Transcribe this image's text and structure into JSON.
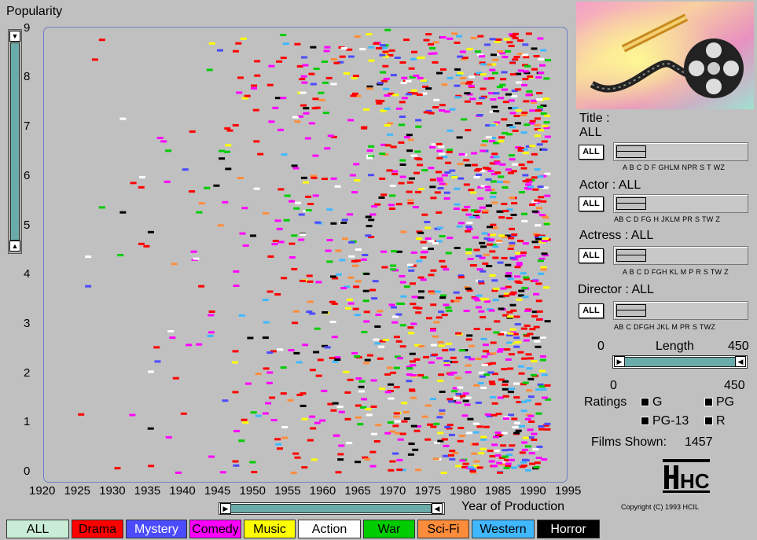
{
  "axes": {
    "y_title": "Popularity",
    "y_ticks": [
      "0",
      "1",
      "2",
      "3",
      "4",
      "5",
      "6",
      "7",
      "8",
      "9"
    ],
    "x_ticks": [
      "1920",
      "1925",
      "1930",
      "1935",
      "1940",
      "1945",
      "1950",
      "1955",
      "1960",
      "1965",
      "1970",
      "1975",
      "1980",
      "1985",
      "1990",
      "1995"
    ],
    "x_title": "Year of Production"
  },
  "legend": [
    {
      "label": "ALL",
      "bg": "#c9ecd6",
      "fg": "#000000"
    },
    {
      "label": "Drama",
      "bg": "#ff0000",
      "fg": "#000000"
    },
    {
      "label": "Mystery",
      "bg": "#4b4bff",
      "fg": "#ffffff"
    },
    {
      "label": "Comedy",
      "bg": "#ff00ff",
      "fg": "#000000"
    },
    {
      "label": "Music",
      "bg": "#ffff00",
      "fg": "#000000"
    },
    {
      "label": "Action",
      "bg": "#ffffff",
      "fg": "#000000"
    },
    {
      "label": "War",
      "bg": "#00cc00",
      "fg": "#000000"
    },
    {
      "label": "Sci-Fi",
      "bg": "#ff8c3a",
      "fg": "#000000"
    },
    {
      "label": "Western",
      "bg": "#40b8ff",
      "fg": "#000000"
    },
    {
      "label": "Horror",
      "bg": "#000000",
      "fg": "#ffffff"
    }
  ],
  "filters": {
    "title_label": "Title :",
    "title_value": "ALL",
    "title_letters": "A B C D F GHLM NPR S  T  WZ",
    "actor_label": "Actor : ALL",
    "actor_letters": "AB  C  D FG H JKLM  PR S  TW Z",
    "actress_label": "Actress : ALL",
    "actress_letters": "A B  C  D FGH KL M  P R S  TW Z",
    "director_label": "Director : ALL",
    "director_letters": "AB  C  DFGH JKL M  PR S  TWZ",
    "all_button": "ALL"
  },
  "length": {
    "min_label": "0",
    "title": "Length",
    "max_label": "450",
    "current_min": "0",
    "current_max": "450"
  },
  "ratings": {
    "label": "Ratings",
    "items": [
      "G",
      "PG",
      "PG-13",
      "R"
    ]
  },
  "films_shown": {
    "label": "Films Shown:",
    "count": "1457"
  },
  "hcil": {
    "logo_text": "HCIL",
    "copyright": "Copyright (C) 1993 HCIL"
  },
  "chart_data": {
    "type": "scatter",
    "xlabel": "Year of Production",
    "ylabel": "Popularity",
    "xlim": [
      1920,
      1995
    ],
    "ylim": [
      0,
      9
    ],
    "note_sample": [
      {
        "x": 1926,
        "y": 1.2,
        "genre": "Drama"
      },
      {
        "x": 1927,
        "y": 3.8,
        "genre": "Mystery"
      },
      {
        "x": 1927,
        "y": 4.4,
        "genre": "Action"
      },
      {
        "x": 1928,
        "y": 8.4,
        "genre": "Drama"
      },
      {
        "x": 1929,
        "y": 8.8,
        "genre": "Drama"
      },
      {
        "x": 1929,
        "y": 5.4,
        "genre": "War"
      },
      {
        "x": 1932,
        "y": 5.3,
        "genre": "Horror"
      },
      {
        "x": 1932,
        "y": 7.2,
        "genre": "Action"
      },
      {
        "x": 1936,
        "y": 4.9,
        "genre": "Horror"
      },
      {
        "x": 1955,
        "y": 8.9,
        "genre": "War"
      },
      {
        "x": 1958,
        "y": 6.0,
        "genre": "Horror"
      },
      {
        "x": 1970,
        "y": 9.0,
        "genre": "War"
      },
      {
        "x": 1980,
        "y": 8.2,
        "genre": "Horror"
      },
      {
        "x": 1988,
        "y": 8.1,
        "genre": "Drama"
      },
      {
        "x": 1990,
        "y": 3.0,
        "genre": "Drama"
      }
    ]
  }
}
